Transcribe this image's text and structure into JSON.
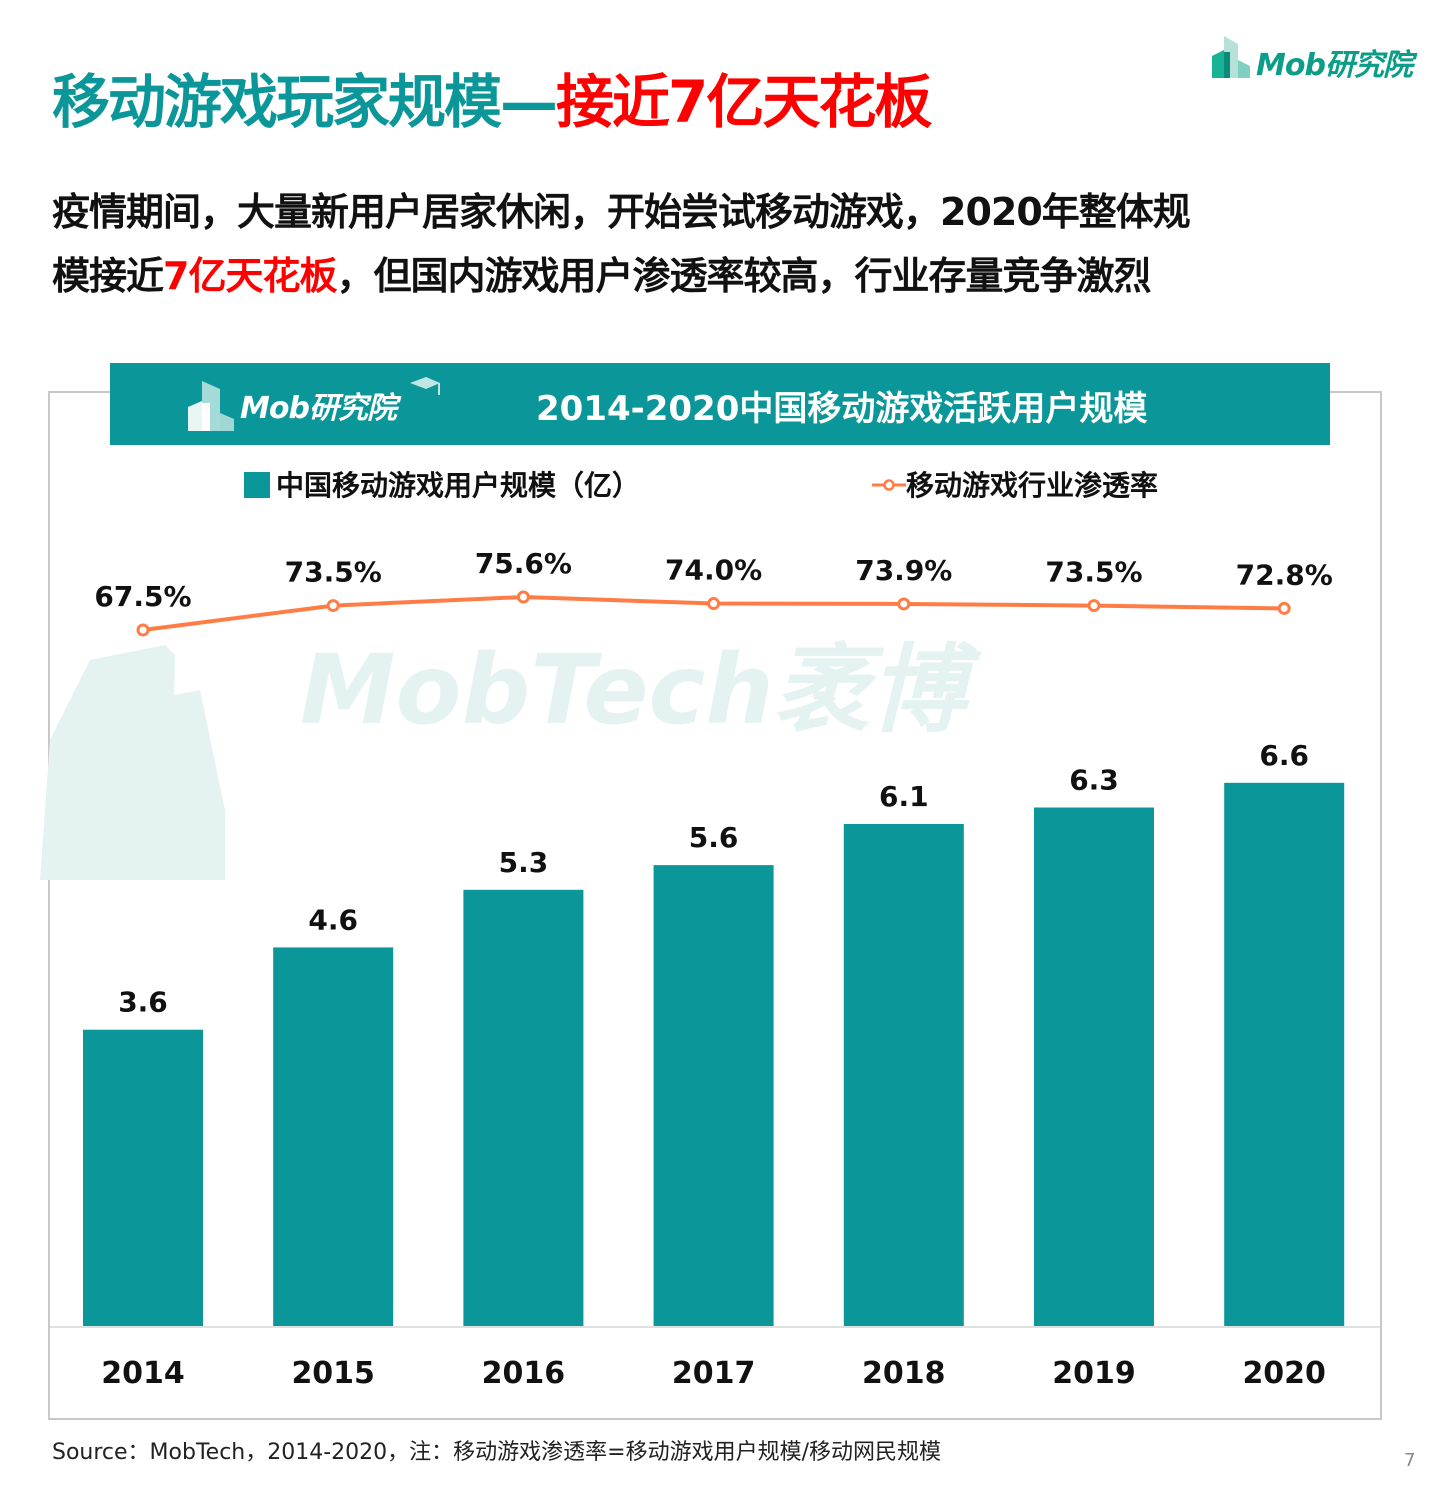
{
  "header": {
    "title_part1": "移动游戏玩家规模—",
    "title_part2": "接近7亿天花板",
    "brand_logo": "Mob研究院"
  },
  "subtitle": {
    "line1": "疫情期间，大量新用户居家休闲，开始尝试移动游戏，2020年整体规",
    "line2_pre": "模接近",
    "line2_red": "7亿天花板",
    "line2_post": "，但国内游戏用户渗透率较高，行业存量竞争激烈"
  },
  "chart_header": {
    "brand_logo": "Mob研究院",
    "title": "2014-2020中国移动游戏活跃用户规模"
  },
  "watermark": "MobTech袤博",
  "footer": {
    "source": "Source：MobTech，2014-2020，注：移动游戏渗透率=移动游戏用户规模/移动网民规模",
    "page_number": "7"
  },
  "colors": {
    "bar": "#0b9699",
    "line": "#ff7d45",
    "title_teal": "#0b9699",
    "title_red": "#ff0000"
  },
  "chart_data": {
    "type": "bar",
    "title": "2014-2020中国移动游戏活跃用户规模",
    "categories": [
      "2014",
      "2015",
      "2016",
      "2017",
      "2018",
      "2019",
      "2020"
    ],
    "series": [
      {
        "name": "中国移动游戏用户规模（亿）",
        "type": "bar",
        "values": [
          3.6,
          4.6,
          5.3,
          5.6,
          6.1,
          6.3,
          6.6
        ],
        "labels": [
          "3.6",
          "4.6",
          "5.3",
          "5.6",
          "6.1",
          "6.3",
          "6.6"
        ]
      },
      {
        "name": "移动游戏行业渗透率",
        "type": "line",
        "values": [
          67.5,
          73.5,
          75.6,
          74.0,
          73.9,
          73.5,
          72.8
        ],
        "labels": [
          "67.5%",
          "73.5%",
          "75.6%",
          "74.0%",
          "73.9%",
          "73.5%",
          "72.8%"
        ]
      }
    ],
    "xlabel": "",
    "ylabel": "",
    "ylim": [
      0,
      6.6
    ],
    "legend_position": "top",
    "grid": false
  }
}
